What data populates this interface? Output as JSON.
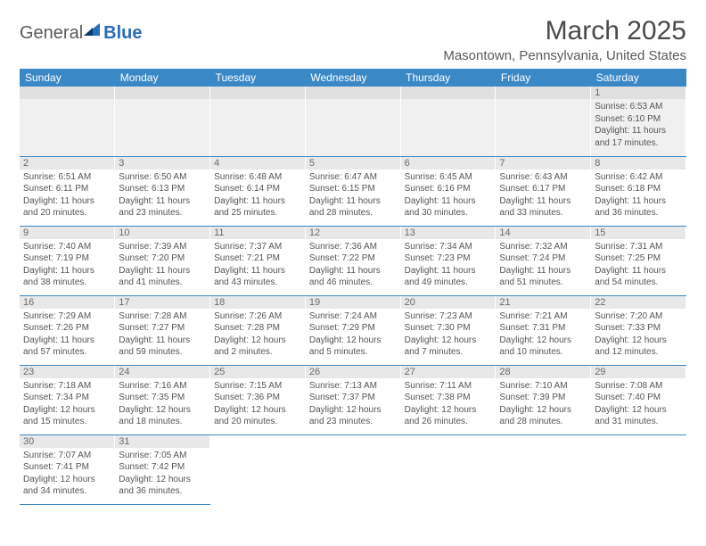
{
  "logo": {
    "word1": "General",
    "word2": "Blue"
  },
  "title": "March 2025",
  "location": "Masontown, Pennsylvania, United States",
  "colors": {
    "header_bg": "#3b88c6",
    "header_fg": "#ffffff",
    "daynum_bg": "#e8e8e8",
    "text": "#555555",
    "rule": "#3b88c6"
  },
  "days_of_week": [
    "Sunday",
    "Monday",
    "Tuesday",
    "Wednesday",
    "Thursday",
    "Friday",
    "Saturday"
  ],
  "weeks": [
    [
      null,
      null,
      null,
      null,
      null,
      null,
      {
        "n": 1,
        "rise": "6:53 AM",
        "set": "6:10 PM",
        "dh": 11,
        "dm": 17
      }
    ],
    [
      {
        "n": 2,
        "rise": "6:51 AM",
        "set": "6:11 PM",
        "dh": 11,
        "dm": 20
      },
      {
        "n": 3,
        "rise": "6:50 AM",
        "set": "6:13 PM",
        "dh": 11,
        "dm": 23
      },
      {
        "n": 4,
        "rise": "6:48 AM",
        "set": "6:14 PM",
        "dh": 11,
        "dm": 25
      },
      {
        "n": 5,
        "rise": "6:47 AM",
        "set": "6:15 PM",
        "dh": 11,
        "dm": 28
      },
      {
        "n": 6,
        "rise": "6:45 AM",
        "set": "6:16 PM",
        "dh": 11,
        "dm": 30
      },
      {
        "n": 7,
        "rise": "6:43 AM",
        "set": "6:17 PM",
        "dh": 11,
        "dm": 33
      },
      {
        "n": 8,
        "rise": "6:42 AM",
        "set": "6:18 PM",
        "dh": 11,
        "dm": 36
      }
    ],
    [
      {
        "n": 9,
        "rise": "7:40 AM",
        "set": "7:19 PM",
        "dh": 11,
        "dm": 38
      },
      {
        "n": 10,
        "rise": "7:39 AM",
        "set": "7:20 PM",
        "dh": 11,
        "dm": 41
      },
      {
        "n": 11,
        "rise": "7:37 AM",
        "set": "7:21 PM",
        "dh": 11,
        "dm": 43
      },
      {
        "n": 12,
        "rise": "7:36 AM",
        "set": "7:22 PM",
        "dh": 11,
        "dm": 46
      },
      {
        "n": 13,
        "rise": "7:34 AM",
        "set": "7:23 PM",
        "dh": 11,
        "dm": 49
      },
      {
        "n": 14,
        "rise": "7:32 AM",
        "set": "7:24 PM",
        "dh": 11,
        "dm": 51
      },
      {
        "n": 15,
        "rise": "7:31 AM",
        "set": "7:25 PM",
        "dh": 11,
        "dm": 54
      }
    ],
    [
      {
        "n": 16,
        "rise": "7:29 AM",
        "set": "7:26 PM",
        "dh": 11,
        "dm": 57
      },
      {
        "n": 17,
        "rise": "7:28 AM",
        "set": "7:27 PM",
        "dh": 11,
        "dm": 59
      },
      {
        "n": 18,
        "rise": "7:26 AM",
        "set": "7:28 PM",
        "dh": 12,
        "dm": 2
      },
      {
        "n": 19,
        "rise": "7:24 AM",
        "set": "7:29 PM",
        "dh": 12,
        "dm": 5
      },
      {
        "n": 20,
        "rise": "7:23 AM",
        "set": "7:30 PM",
        "dh": 12,
        "dm": 7
      },
      {
        "n": 21,
        "rise": "7:21 AM",
        "set": "7:31 PM",
        "dh": 12,
        "dm": 10
      },
      {
        "n": 22,
        "rise": "7:20 AM",
        "set": "7:33 PM",
        "dh": 12,
        "dm": 12
      }
    ],
    [
      {
        "n": 23,
        "rise": "7:18 AM",
        "set": "7:34 PM",
        "dh": 12,
        "dm": 15
      },
      {
        "n": 24,
        "rise": "7:16 AM",
        "set": "7:35 PM",
        "dh": 12,
        "dm": 18
      },
      {
        "n": 25,
        "rise": "7:15 AM",
        "set": "7:36 PM",
        "dh": 12,
        "dm": 20
      },
      {
        "n": 26,
        "rise": "7:13 AM",
        "set": "7:37 PM",
        "dh": 12,
        "dm": 23
      },
      {
        "n": 27,
        "rise": "7:11 AM",
        "set": "7:38 PM",
        "dh": 12,
        "dm": 26
      },
      {
        "n": 28,
        "rise": "7:10 AM",
        "set": "7:39 PM",
        "dh": 12,
        "dm": 28
      },
      {
        "n": 29,
        "rise": "7:08 AM",
        "set": "7:40 PM",
        "dh": 12,
        "dm": 31
      }
    ],
    [
      {
        "n": 30,
        "rise": "7:07 AM",
        "set": "7:41 PM",
        "dh": 12,
        "dm": 34
      },
      {
        "n": 31,
        "rise": "7:05 AM",
        "set": "7:42 PM",
        "dh": 12,
        "dm": 36
      },
      null,
      null,
      null,
      null,
      null
    ]
  ],
  "labels": {
    "sunrise": "Sunrise:",
    "sunset": "Sunset:",
    "daylight": "Daylight:",
    "hours": "hours",
    "and": "and",
    "minutes": "minutes."
  }
}
